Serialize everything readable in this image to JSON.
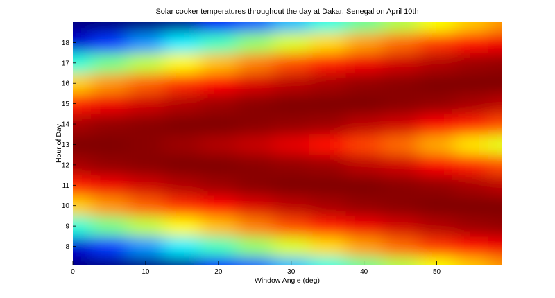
{
  "chart_data": {
    "type": "heatmap",
    "title": "Solar cooker temperatures throughout the day at Dakar, Senegal on April 10th",
    "xlabel": "Window Angle (deg)",
    "ylabel": "Hour of Day",
    "colormap": "jet",
    "x": [
      0,
      5,
      10,
      15,
      20,
      25,
      30,
      35,
      40,
      45,
      50,
      55,
      59
    ],
    "y": [
      7,
      8,
      9,
      10,
      11,
      12,
      13,
      14,
      15,
      16,
      17,
      18,
      19
    ],
    "z": [
      [
        0,
        0,
        0,
        0.02,
        0.12,
        0.22,
        0.31,
        0.4,
        0.48,
        0.55,
        0.62,
        0.68,
        0.73
      ],
      [
        0.08,
        0.18,
        0.27,
        0.36,
        0.44,
        0.52,
        0.59,
        0.66,
        0.72,
        0.77,
        0.82,
        0.86,
        0.89
      ],
      [
        0.41,
        0.49,
        0.56,
        0.63,
        0.69,
        0.75,
        0.8,
        0.85,
        0.89,
        0.92,
        0.95,
        0.97,
        0.98
      ],
      [
        0.67,
        0.73,
        0.78,
        0.83,
        0.87,
        0.91,
        0.94,
        0.96,
        0.98,
        0.99,
        1.0,
        1.0,
        1.0
      ],
      [
        0.85,
        0.89,
        0.92,
        0.95,
        0.97,
        0.99,
        1.0,
        1.0,
        1.0,
        0.99,
        0.98,
        0.96,
        0.94
      ],
      [
        0.96,
        0.98,
        0.99,
        1.0,
        1.0,
        0.99,
        0.98,
        0.97,
        0.94,
        0.92,
        0.88,
        0.84,
        0.8
      ],
      [
        1.0,
        1.0,
        0.99,
        0.97,
        0.95,
        0.93,
        0.9,
        0.86,
        0.81,
        0.77,
        0.71,
        0.65,
        0.6
      ],
      [
        0.96,
        0.98,
        0.99,
        1.0,
        1.0,
        0.99,
        0.98,
        0.97,
        0.94,
        0.92,
        0.88,
        0.84,
        0.8
      ],
      [
        0.85,
        0.89,
        0.92,
        0.95,
        0.97,
        0.99,
        1.0,
        1.0,
        1.0,
        0.99,
        0.98,
        0.96,
        0.94
      ],
      [
        0.67,
        0.73,
        0.78,
        0.83,
        0.87,
        0.91,
        0.94,
        0.96,
        0.98,
        0.99,
        1.0,
        1.0,
        1.0
      ],
      [
        0.41,
        0.49,
        0.56,
        0.63,
        0.69,
        0.75,
        0.8,
        0.85,
        0.89,
        0.92,
        0.95,
        0.97,
        0.98
      ],
      [
        0.08,
        0.18,
        0.27,
        0.36,
        0.44,
        0.52,
        0.59,
        0.66,
        0.72,
        0.77,
        0.82,
        0.86,
        0.89
      ],
      [
        0,
        0,
        0,
        0.02,
        0.12,
        0.22,
        0.31,
        0.4,
        0.48,
        0.55,
        0.62,
        0.68,
        0.73
      ]
    ],
    "xlim": [
      0,
      59
    ],
    "xticks": [
      0,
      10,
      20,
      30,
      40,
      50
    ],
    "ylim": [
      7.1,
      19
    ],
    "yticks": [
      8,
      9,
      10,
      11,
      12,
      13,
      14,
      15,
      16,
      17,
      18
    ]
  }
}
